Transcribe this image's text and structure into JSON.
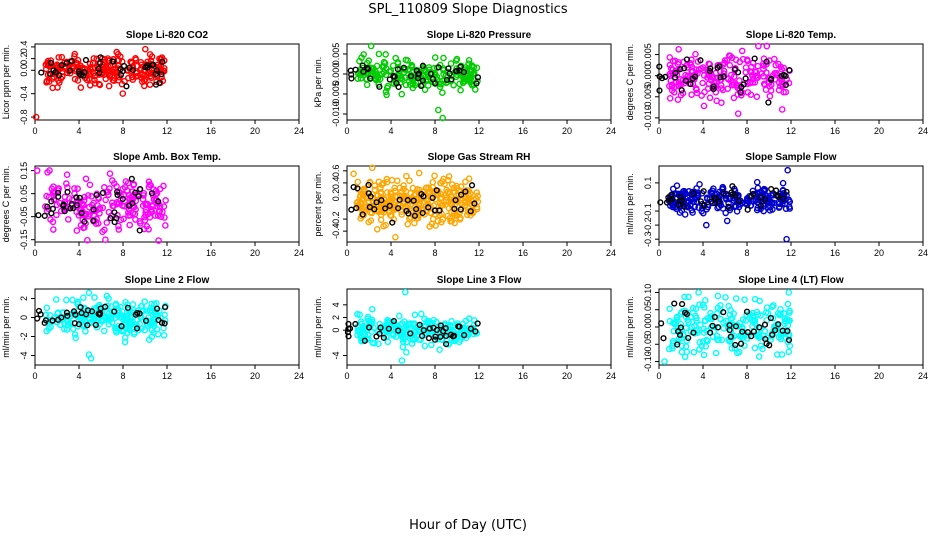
{
  "figure": {
    "title": "SPL_110809  Slope Diagnostics",
    "xlabel": "Hour of Day (UTC)"
  },
  "chart_data": [
    {
      "type": "scatter",
      "title": "Slope Li-820 CO2",
      "ylabel": "Licor ppm per min.",
      "xlim": [
        0,
        24
      ],
      "xticks": [
        0,
        4,
        8,
        12,
        16,
        20,
        24
      ],
      "ylim": [
        -0.85,
        0.45
      ],
      "yticks": [
        -0.8,
        -0.4,
        0.0,
        0.2,
        0.4
      ],
      "ytick_labels": [
        "-0.8",
        "-0.4",
        "0.0",
        "0.2",
        "0.4"
      ],
      "color": "#ff0000",
      "center": 0.0,
      "spread": 0.13,
      "n": 220,
      "outliers": [
        {
          "x": 0.1,
          "y": -0.8
        },
        {
          "x": 1.6,
          "y": -0.3
        },
        {
          "x": 3.2,
          "y": -0.05
        },
        {
          "x": 5.9,
          "y": -0.25
        }
      ]
    },
    {
      "type": "scatter",
      "title": "Slope Li-820 Pressure",
      "ylabel": "kPa per min.",
      "xlim": [
        0,
        24
      ],
      "xticks": [
        0,
        4,
        8,
        12,
        16,
        20,
        24
      ],
      "ylim": [
        -0.0115,
        0.0075
      ],
      "yticks": [
        -0.01,
        -0.005,
        0.0,
        0.005
      ],
      "ytick_labels": [
        "-0.010",
        "-0.005",
        "0.000",
        "0.005"
      ],
      "color": "#00cc00",
      "center": 0.0,
      "spread": 0.0018,
      "n": 220,
      "outliers": [
        {
          "x": 2.2,
          "y": 0.007
        },
        {
          "x": 8.3,
          "y": -0.009
        },
        {
          "x": 8.7,
          "y": -0.011
        },
        {
          "x": 2.9,
          "y": 0.005
        }
      ]
    },
    {
      "type": "scatter",
      "title": "Slope Li-820 Temp.",
      "ylabel": "degrees C per min.",
      "xlim": [
        0,
        24
      ],
      "xticks": [
        0,
        4,
        8,
        12,
        16,
        20,
        24
      ],
      "ylim": [
        -0.0105,
        0.0075
      ],
      "yticks": [
        -0.01,
        -0.005,
        0.0,
        0.005
      ],
      "ytick_labels": [
        "-0.010",
        "-0.005",
        "0.000",
        "0.005"
      ],
      "color": "#ff00ff",
      "center": -0.0005,
      "spread": 0.0028,
      "n": 220,
      "outliers": [
        {
          "x": 9.8,
          "y": 0.007
        },
        {
          "x": 7.2,
          "y": -0.009
        },
        {
          "x": 11.2,
          "y": -0.008
        }
      ]
    },
    {
      "type": "scatter",
      "title": "Slope Amb. Box Temp.",
      "ylabel": "degrees C per min.",
      "xlim": [
        0,
        24
      ],
      "xticks": [
        0,
        4,
        8,
        12,
        16,
        20,
        24
      ],
      "ylim": [
        -0.16,
        0.17
      ],
      "yticks": [
        -0.15,
        -0.05,
        0.05,
        0.15
      ],
      "ytick_labels": [
        "-0.15",
        "-0.05",
        "0.05",
        "0.15"
      ],
      "color": "#ff00ff",
      "center": 0.0,
      "spread": 0.06,
      "n": 220,
      "outliers": [
        {
          "x": 0.2,
          "y": 0.15
        },
        {
          "x": 6.4,
          "y": -0.15
        }
      ]
    },
    {
      "type": "scatter",
      "title": "Slope Gas Stream RH",
      "ylabel": "percent per min.",
      "xlim": [
        0,
        24
      ],
      "xticks": [
        0,
        4,
        8,
        12,
        16,
        20,
        24
      ],
      "ylim": [
        -0.58,
        0.68
      ],
      "yticks": [
        -0.4,
        -0.2,
        0.2,
        0.4,
        0.6
      ],
      "ytick_labels": [
        "-0.4",
        "-0.2",
        "0.2",
        "0.4",
        "0.6"
      ],
      "color": "#ffa500",
      "center": 0.1,
      "spread": 0.17,
      "n": 320,
      "outliers": [
        {
          "x": 0.6,
          "y": 0.55
        },
        {
          "x": 4.4,
          "y": -0.5
        },
        {
          "x": 2.3,
          "y": 0.65
        }
      ]
    },
    {
      "type": "scatter",
      "title": "Slope Sample Flow",
      "ylabel": "ml/min per min.",
      "xlim": [
        0,
        24
      ],
      "xticks": [
        0,
        4,
        8,
        12,
        16,
        20,
        24
      ],
      "ylim": [
        -0.32,
        0.22
      ],
      "yticks": [
        -0.3,
        -0.2,
        -0.1,
        0.1
      ],
      "ytick_labels": [
        "-0.3",
        "-0.2",
        "-0.1",
        "0.1"
      ],
      "color": "#0000cc",
      "center": -0.02,
      "spread": 0.045,
      "n": 240,
      "outliers": [
        {
          "x": 11.6,
          "y": -0.3
        },
        {
          "x": 11.7,
          "y": 0.19
        },
        {
          "x": 4.3,
          "y": -0.2
        },
        {
          "x": 6.2,
          "y": -0.17
        }
      ]
    },
    {
      "type": "scatter",
      "title": "Slope Line 2 Flow",
      "ylabel": "ml/min per min.",
      "xlim": [
        0,
        24
      ],
      "xticks": [
        0,
        4,
        8,
        12,
        16,
        20,
        24
      ],
      "ylim": [
        -5,
        3
      ],
      "yticks": [
        -4,
        -2,
        0,
        2
      ],
      "ytick_labels": [
        "-4",
        "-2",
        "0",
        "2"
      ],
      "color": "#00ffff",
      "center": 0.0,
      "spread": 0.9,
      "n": 220,
      "outliers": [
        {
          "x": 5.1,
          "y": -4.3
        },
        {
          "x": 4.9,
          "y": -3.9
        },
        {
          "x": 4.9,
          "y": 2.6
        }
      ]
    },
    {
      "type": "scatter",
      "title": "Slope Line 3 Flow",
      "ylabel": "ml/min per min.",
      "xlim": [
        0,
        24
      ],
      "xticks": [
        0,
        4,
        8,
        12,
        16,
        20,
        24
      ],
      "ylim": [
        -5.5,
        6.5
      ],
      "yticks": [
        -4,
        0,
        2,
        4
      ],
      "ytick_labels": [
        "-4",
        "0",
        "2",
        "4"
      ],
      "color": "#00ffff",
      "center": 0.0,
      "spread": 1.1,
      "n": 220,
      "outliers": [
        {
          "x": 5.3,
          "y": 6.0
        },
        {
          "x": 5.0,
          "y": -4.8
        },
        {
          "x": 5.4,
          "y": -3.5
        }
      ]
    },
    {
      "type": "scatter",
      "title": "Slope Line 4 (LT) Flow",
      "ylabel": "ml/min per min.",
      "xlim": [
        0,
        24
      ],
      "xticks": [
        0,
        4,
        8,
        12,
        16,
        20,
        24
      ],
      "ylim": [
        -0.11,
        0.11
      ],
      "yticks": [
        -0.1,
        -0.05,
        0.0,
        0.05,
        0.1
      ],
      "ytick_labels": [
        "-0.10",
        "-0.05",
        "0.00",
        "0.05",
        "0.10"
      ],
      "color": "#00ffff",
      "center": 0.0,
      "spread": 0.04,
      "n": 220,
      "outliers": [
        {
          "x": 0.5,
          "y": -0.1
        },
        {
          "x": 3.6,
          "y": 0.1
        },
        {
          "x": 11.8,
          "y": 0.1
        }
      ]
    }
  ]
}
